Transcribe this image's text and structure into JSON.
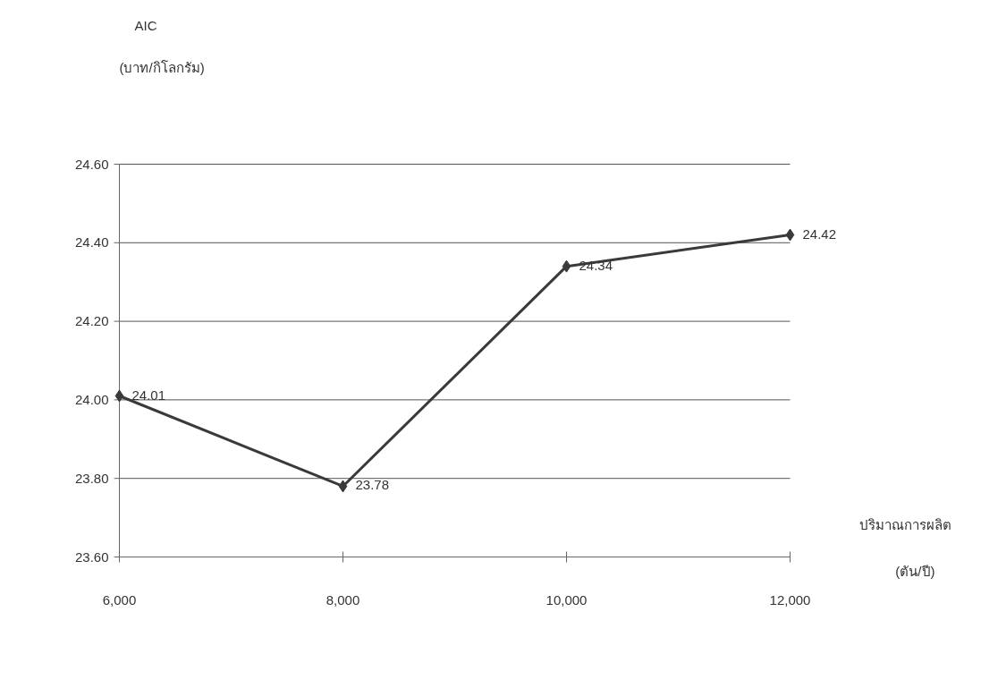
{
  "chart_data": {
    "type": "line",
    "xlabel": "ปริมาณการผลิต (ตัน/ปี)",
    "ylabel": "AIC (บาท/กิโลกรัม)",
    "x": [
      6000,
      8000,
      10000,
      12000
    ],
    "series": [
      {
        "color": "#3a3a3a",
        "values": [
          24.01,
          23.78,
          24.34,
          24.42
        ]
      }
    ],
    "xlim": [
      6000,
      12000
    ],
    "xticks": [
      {
        "value": 6000,
        "label": "6,000"
      },
      {
        "value": 8000,
        "label": "8,000"
      },
      {
        "value": 10000,
        "label": "10,000"
      },
      {
        "value": 12000,
        "label": "12,000"
      }
    ],
    "ylim": [
      23.6,
      24.6
    ],
    "yticks": [
      {
        "value": 23.6,
        "label": "23.60"
      },
      {
        "value": 23.8,
        "label": "23.80"
      },
      {
        "value": 24.0,
        "label": "24.00"
      },
      {
        "value": 24.2,
        "label": "24.20"
      },
      {
        "value": 24.4,
        "label": "24.40"
      },
      {
        "value": 24.6,
        "label": "24.60"
      }
    ],
    "grid": "y",
    "marker": "diamond",
    "line_style": "solid",
    "data_labels": true
  }
}
